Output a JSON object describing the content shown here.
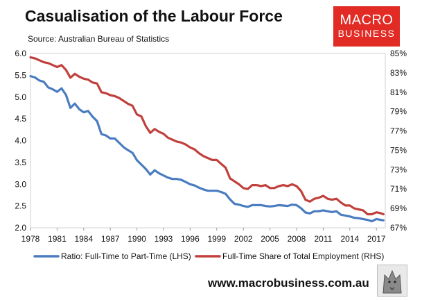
{
  "header": {
    "title": "Casualisation of the Labour Force",
    "subtitle": "Source: Australian Bureau of Statistics"
  },
  "logo": {
    "line1": "MACRO",
    "line2": "BUSINESS"
  },
  "footer": {
    "url": "www.macrobusiness.com.au"
  },
  "colors": {
    "ratio": "#4a7cc0",
    "share": "#c0403c",
    "brand": "#e12b24"
  },
  "chart_data": {
    "type": "line",
    "title": "Casualisation of the Labour Force",
    "x_ticks": [
      "1978",
      "1981",
      "1984",
      "1987",
      "1990",
      "1993",
      "1996",
      "1999",
      "2002",
      "2005",
      "2008",
      "2011",
      "2014",
      "2017"
    ],
    "xlim": [
      1978,
      2018
    ],
    "y_left": {
      "ticks": [
        "2.0",
        "2.5",
        "3.0",
        "3.5",
        "4.0",
        "4.5",
        "5.0",
        "5.5",
        "6.0"
      ],
      "lim": [
        2.0,
        6.0
      ]
    },
    "y_right": {
      "ticks": [
        "67%",
        "69%",
        "71%",
        "73%",
        "75%",
        "77%",
        "79%",
        "81%",
        "83%",
        "85%"
      ],
      "lim": [
        67,
        85
      ]
    },
    "series": [
      {
        "name": "Ratio: Full-Time to Part-Time (LHS)",
        "axis": "left",
        "points": [
          [
            1978,
            5.48
          ],
          [
            1978.5,
            5.45
          ],
          [
            1979,
            5.38
          ],
          [
            1979.5,
            5.35
          ],
          [
            1980,
            5.22
          ],
          [
            1980.5,
            5.18
          ],
          [
            1981,
            5.12
          ],
          [
            1981.5,
            5.2
          ],
          [
            1982,
            5.05
          ],
          [
            1982.5,
            4.75
          ],
          [
            1983,
            4.85
          ],
          [
            1983.5,
            4.72
          ],
          [
            1984,
            4.65
          ],
          [
            1984.5,
            4.68
          ],
          [
            1985,
            4.55
          ],
          [
            1985.5,
            4.45
          ],
          [
            1986,
            4.15
          ],
          [
            1986.5,
            4.12
          ],
          [
            1987,
            4.05
          ],
          [
            1987.5,
            4.05
          ],
          [
            1988,
            3.95
          ],
          [
            1988.5,
            3.85
          ],
          [
            1989,
            3.78
          ],
          [
            1989.5,
            3.72
          ],
          [
            1990,
            3.55
          ],
          [
            1990.5,
            3.45
          ],
          [
            1991,
            3.35
          ],
          [
            1991.5,
            3.22
          ],
          [
            1992,
            3.32
          ],
          [
            1992.5,
            3.25
          ],
          [
            1993,
            3.2
          ],
          [
            1993.5,
            3.15
          ],
          [
            1994,
            3.12
          ],
          [
            1994.5,
            3.12
          ],
          [
            1995,
            3.1
          ],
          [
            1995.5,
            3.05
          ],
          [
            1996,
            3.0
          ],
          [
            1996.5,
            2.97
          ],
          [
            1997,
            2.92
          ],
          [
            1997.5,
            2.88
          ],
          [
            1998,
            2.85
          ],
          [
            1998.5,
            2.85
          ],
          [
            1999,
            2.85
          ],
          [
            1999.5,
            2.82
          ],
          [
            2000,
            2.78
          ],
          [
            2000.5,
            2.65
          ],
          [
            2001,
            2.55
          ],
          [
            2001.5,
            2.53
          ],
          [
            2002,
            2.5
          ],
          [
            2002.5,
            2.48
          ],
          [
            2003,
            2.52
          ],
          [
            2003.5,
            2.52
          ],
          [
            2004,
            2.52
          ],
          [
            2004.5,
            2.5
          ],
          [
            2005,
            2.49
          ],
          [
            2005.5,
            2.5
          ],
          [
            2006,
            2.52
          ],
          [
            2006.5,
            2.51
          ],
          [
            2007,
            2.5
          ],
          [
            2007.5,
            2.53
          ],
          [
            2008,
            2.52
          ],
          [
            2008.5,
            2.45
          ],
          [
            2009,
            2.35
          ],
          [
            2009.5,
            2.33
          ],
          [
            2010,
            2.38
          ],
          [
            2010.5,
            2.38
          ],
          [
            2011,
            2.4
          ],
          [
            2011.5,
            2.38
          ],
          [
            2012,
            2.36
          ],
          [
            2012.5,
            2.38
          ],
          [
            2013,
            2.3
          ],
          [
            2013.5,
            2.28
          ],
          [
            2014,
            2.26
          ],
          [
            2014.5,
            2.23
          ],
          [
            2015,
            2.22
          ],
          [
            2015.5,
            2.2
          ],
          [
            2016,
            2.18
          ],
          [
            2016.5,
            2.15
          ],
          [
            2017,
            2.2
          ],
          [
            2017.5,
            2.18
          ],
          [
            2017.8,
            2.17
          ]
        ]
      },
      {
        "name": "Full-Time Share of Total Employment (RHS)",
        "axis": "right",
        "points": [
          [
            1978,
            84.6
          ],
          [
            1978.5,
            84.5
          ],
          [
            1979,
            84.3
          ],
          [
            1979.5,
            84.1
          ],
          [
            1980,
            84.0
          ],
          [
            1980.5,
            83.8
          ],
          [
            1981,
            83.6
          ],
          [
            1981.5,
            83.8
          ],
          [
            1982,
            83.3
          ],
          [
            1982.5,
            82.5
          ],
          [
            1983,
            82.9
          ],
          [
            1983.5,
            82.6
          ],
          [
            1984,
            82.4
          ],
          [
            1984.5,
            82.3
          ],
          [
            1985,
            82.0
          ],
          [
            1985.5,
            81.9
          ],
          [
            1986,
            81.0
          ],
          [
            1986.5,
            80.9
          ],
          [
            1987,
            80.7
          ],
          [
            1987.5,
            80.6
          ],
          [
            1988,
            80.4
          ],
          [
            1988.5,
            80.1
          ],
          [
            1989,
            79.8
          ],
          [
            1989.5,
            79.6
          ],
          [
            1990,
            78.7
          ],
          [
            1990.5,
            78.5
          ],
          [
            1991,
            77.5
          ],
          [
            1991.5,
            76.8
          ],
          [
            1992,
            77.2
          ],
          [
            1992.5,
            76.9
          ],
          [
            1993,
            76.7
          ],
          [
            1993.5,
            76.3
          ],
          [
            1994,
            76.1
          ],
          [
            1994.5,
            75.9
          ],
          [
            1995,
            75.8
          ],
          [
            1995.5,
            75.6
          ],
          [
            1996,
            75.3
          ],
          [
            1996.5,
            75.1
          ],
          [
            1997,
            74.7
          ],
          [
            1997.5,
            74.4
          ],
          [
            1998,
            74.2
          ],
          [
            1998.5,
            74.0
          ],
          [
            1999,
            74.0
          ],
          [
            1999.5,
            73.6
          ],
          [
            2000,
            73.2
          ],
          [
            2000.5,
            72.1
          ],
          [
            2001,
            71.8
          ],
          [
            2001.5,
            71.5
          ],
          [
            2002,
            71.1
          ],
          [
            2002.5,
            71.0
          ],
          [
            2003,
            71.4
          ],
          [
            2003.5,
            71.4
          ],
          [
            2004,
            71.3
          ],
          [
            2004.5,
            71.4
          ],
          [
            2005,
            71.1
          ],
          [
            2005.5,
            71.1
          ],
          [
            2006,
            71.3
          ],
          [
            2006.5,
            71.4
          ],
          [
            2007,
            71.3
          ],
          [
            2007.5,
            71.5
          ],
          [
            2008,
            71.3
          ],
          [
            2008.5,
            70.8
          ],
          [
            2009,
            69.9
          ],
          [
            2009.5,
            69.7
          ],
          [
            2010,
            70.0
          ],
          [
            2010.5,
            70.1
          ],
          [
            2011,
            70.3
          ],
          [
            2011.5,
            70.0
          ],
          [
            2012,
            69.9
          ],
          [
            2012.5,
            70.0
          ],
          [
            2013,
            69.6
          ],
          [
            2013.5,
            69.3
          ],
          [
            2014,
            69.3
          ],
          [
            2014.5,
            69.0
          ],
          [
            2015,
            68.9
          ],
          [
            2015.5,
            68.8
          ],
          [
            2016,
            68.4
          ],
          [
            2016.5,
            68.4
          ],
          [
            2017,
            68.6
          ],
          [
            2017.5,
            68.5
          ],
          [
            2017.8,
            68.4
          ]
        ]
      }
    ]
  }
}
